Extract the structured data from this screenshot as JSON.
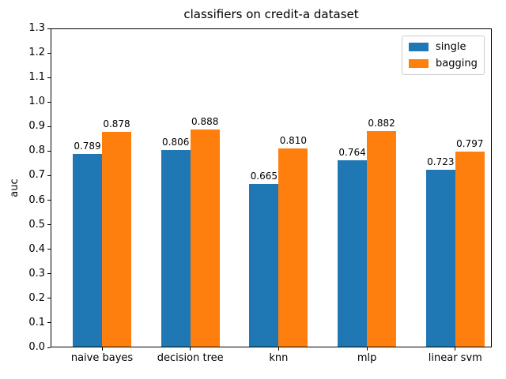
{
  "chart_data": {
    "type": "bar",
    "title": "classifiers on credit-a dataset",
    "xlabel": "",
    "ylabel": "auc",
    "categories": [
      "naive bayes",
      "decision tree",
      "knn",
      "mlp",
      "linear svm"
    ],
    "series": [
      {
        "name": "single",
        "color": "#1f77b4",
        "values": [
          0.789,
          0.806,
          0.665,
          0.764,
          0.723
        ],
        "labels": [
          "0.789",
          "0.806",
          "0.665",
          "0.764",
          "0.723"
        ]
      },
      {
        "name": "bagging",
        "color": "#ff7f0e",
        "values": [
          0.878,
          0.888,
          0.81,
          0.882,
          0.797
        ],
        "labels": [
          "0.878",
          "0.888",
          "0.810",
          "0.882",
          "0.797"
        ]
      }
    ],
    "ylim": [
      0.0,
      1.3
    ],
    "yticks": [
      "0.0",
      "0.1",
      "0.2",
      "0.3",
      "0.4",
      "0.5",
      "0.6",
      "0.7",
      "0.8",
      "0.9",
      "1.0",
      "1.1",
      "1.2",
      "1.3"
    ],
    "grid": false,
    "legend_position": "upper right"
  }
}
